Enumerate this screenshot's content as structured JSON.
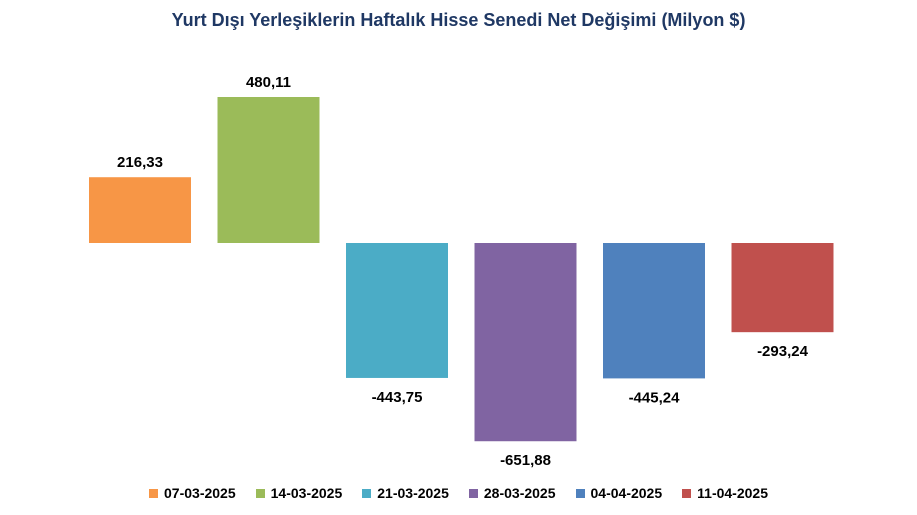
{
  "chart_data": {
    "type": "bar",
    "title": "Yurt Dışı Yerleşiklerin Haftalık Hisse Senedi Net Değişimi (Milyon $)",
    "xlabel": "",
    "ylabel": "",
    "ylim": [
      -700,
      500
    ],
    "grid": false,
    "legend_position": "bottom",
    "categories": [
      "07-03-2025",
      "14-03-2025",
      "21-03-2025",
      "28-03-2025",
      "04-04-2025",
      "11-04-2025"
    ],
    "values": [
      216.33,
      480.11,
      -443.75,
      -651.88,
      -445.24,
      -293.24
    ],
    "value_labels": [
      "216,33",
      "480,11",
      "-443,75",
      "-651,88",
      "-445,24",
      "-293,24"
    ],
    "colors": [
      "#f79646",
      "#9bbb59",
      "#4bacc6",
      "#8064a2",
      "#4f81bd",
      "#c0504d"
    ]
  }
}
